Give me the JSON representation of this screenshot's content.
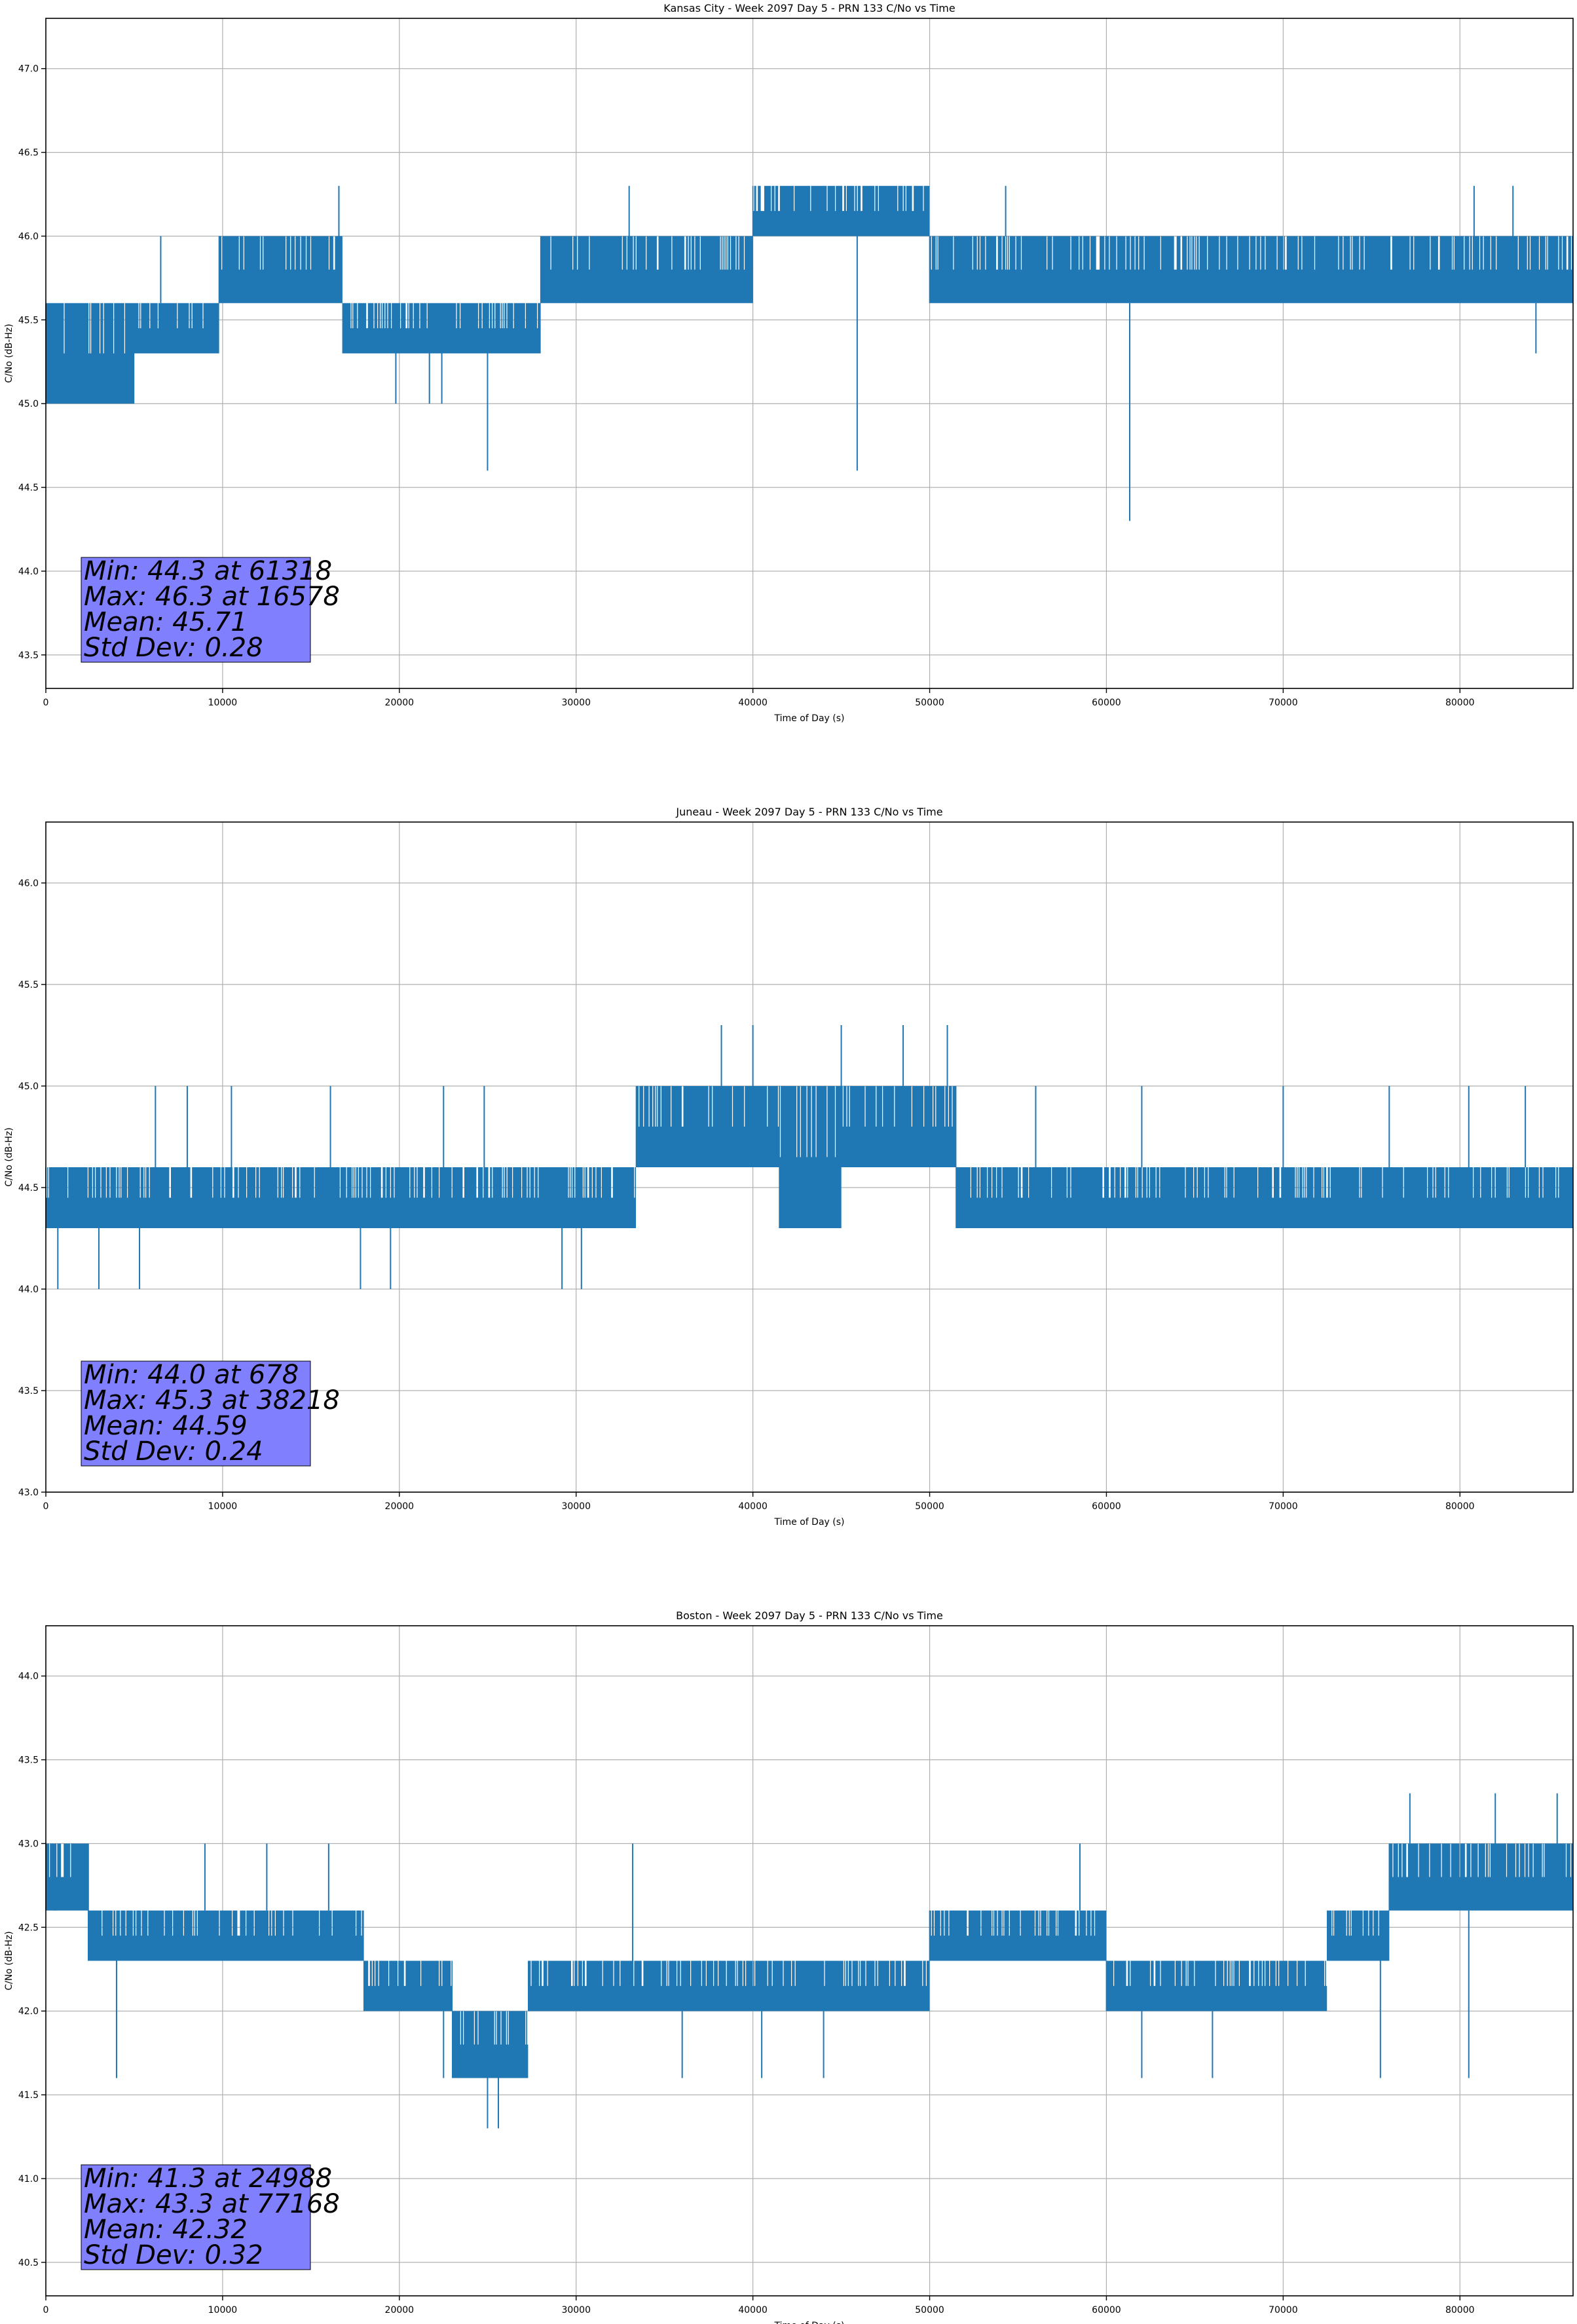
{
  "chart_data": [
    {
      "type": "line",
      "title": "Kansas City - Week 2097 Day 5 - PRN 133 C/No vs Time",
      "xlabel": "Time of Day (s)",
      "ylabel": "C/No (dB-Hz)",
      "xlim": [
        0,
        86400
      ],
      "ylim": [
        43.3,
        47.3
      ],
      "xticks": [
        0,
        10000,
        20000,
        30000,
        40000,
        50000,
        60000,
        70000,
        80000
      ],
      "yticks": [
        43.5,
        44.0,
        44.5,
        45.0,
        45.5,
        46.0,
        46.5,
        47.0
      ],
      "grid": true,
      "series_color": "#1f77b4",
      "stats_box": {
        "lines": [
          "Min: 44.3 at 61318",
          "Max: 46.3 at 16578",
          "Mean: 45.71",
          "Std Dev: 0.28"
        ],
        "box_color": "#8080ff"
      },
      "min": {
        "value": 44.3,
        "x": 61318
      },
      "max": {
        "value": 46.3,
        "x": 16578
      },
      "segments": [
        {
          "x": [
            0,
            5000
          ],
          "low": 45.0,
          "high": 45.6
        },
        {
          "x": [
            5000,
            9800
          ],
          "low": 45.3,
          "high": 45.6
        },
        {
          "x": [
            9800,
            16800
          ],
          "low": 45.6,
          "high": 46.0
        },
        {
          "x": [
            16800,
            26200
          ],
          "low": 45.3,
          "high": 45.6
        },
        {
          "x": [
            26200,
            28000
          ],
          "low": 45.3,
          "high": 45.6
        },
        {
          "x": [
            28000,
            40000
          ],
          "low": 45.6,
          "high": 46.0
        },
        {
          "x": [
            40000,
            50000
          ],
          "low": 46.0,
          "high": 46.3
        },
        {
          "x": [
            50000,
            86400
          ],
          "low": 45.6,
          "high": 46.0
        }
      ],
      "spikes": [
        {
          "x": 6500,
          "y": 46.0
        },
        {
          "x": 16578,
          "y": 46.3
        },
        {
          "x": 19800,
          "y": 45.0
        },
        {
          "x": 21700,
          "y": 45.0
        },
        {
          "x": 24988,
          "y": 44.6
        },
        {
          "x": 33000,
          "y": 46.3
        },
        {
          "x": 45900,
          "y": 44.6
        },
        {
          "x": 54300,
          "y": 46.3
        },
        {
          "x": 61318,
          "y": 44.3
        },
        {
          "x": 80800,
          "y": 46.3
        },
        {
          "x": 83000,
          "y": 46.3
        },
        {
          "x": 84300,
          "y": 45.3
        },
        {
          "x": 22400,
          "y": 45.0
        },
        {
          "x": 2500,
          "y": 45.0
        }
      ]
    },
    {
      "type": "line",
      "title": "Juneau - Week 2097 Day 5 - PRN 133 C/No vs Time",
      "xlabel": "Time of Day (s)",
      "ylabel": "C/No (dB-Hz)",
      "xlim": [
        0,
        86400
      ],
      "ylim": [
        43.0,
        46.3
      ],
      "xticks": [
        0,
        10000,
        20000,
        30000,
        40000,
        50000,
        60000,
        70000,
        80000
      ],
      "yticks": [
        43.0,
        43.5,
        44.0,
        44.5,
        45.0,
        45.5,
        46.0
      ],
      "grid": true,
      "series_color": "#1f77b4",
      "stats_box": {
        "lines": [
          "Min: 44.0 at 678",
          "Max: 45.3 at 38218",
          "Mean: 44.59",
          "Std Dev: 0.24"
        ],
        "box_color": "#8080ff"
      },
      "min": {
        "value": 44.0,
        "x": 678
      },
      "max": {
        "value": 45.3,
        "x": 38218
      },
      "segments": [
        {
          "x": [
            0,
            33400
          ],
          "low": 44.3,
          "high": 44.6
        },
        {
          "x": [
            33400,
            41500
          ],
          "low": 44.6,
          "high": 45.0
        },
        {
          "x": [
            41500,
            45000
          ],
          "low": 44.3,
          "high": 45.0
        },
        {
          "x": [
            45000,
            51500
          ],
          "low": 44.6,
          "high": 45.0
        },
        {
          "x": [
            51500,
            86400
          ],
          "low": 44.3,
          "high": 44.6
        }
      ],
      "spikes": [
        {
          "x": 678,
          "y": 44.0
        },
        {
          "x": 3000,
          "y": 44.0
        },
        {
          "x": 5300,
          "y": 44.0
        },
        {
          "x": 6200,
          "y": 45.0
        },
        {
          "x": 8000,
          "y": 45.0
        },
        {
          "x": 10500,
          "y": 45.0
        },
        {
          "x": 16100,
          "y": 45.0
        },
        {
          "x": 17800,
          "y": 44.0
        },
        {
          "x": 19500,
          "y": 44.0
        },
        {
          "x": 22500,
          "y": 45.0
        },
        {
          "x": 24800,
          "y": 45.0
        },
        {
          "x": 29200,
          "y": 44.0
        },
        {
          "x": 30300,
          "y": 44.0
        },
        {
          "x": 38218,
          "y": 45.3
        },
        {
          "x": 40000,
          "y": 45.3
        },
        {
          "x": 45000,
          "y": 45.3
        },
        {
          "x": 48500,
          "y": 45.3
        },
        {
          "x": 51000,
          "y": 45.3
        },
        {
          "x": 56000,
          "y": 45.0
        },
        {
          "x": 62000,
          "y": 45.0
        },
        {
          "x": 70000,
          "y": 45.0
        },
        {
          "x": 76000,
          "y": 45.0
        },
        {
          "x": 80500,
          "y": 45.0
        },
        {
          "x": 83700,
          "y": 45.0
        }
      ]
    },
    {
      "type": "line",
      "title": "Boston - Week 2097 Day 5 - PRN 133 C/No vs Time",
      "xlabel": "Time of Day (s)",
      "ylabel": "C/No (dB-Hz)",
      "xlim": [
        0,
        86400
      ],
      "ylim": [
        40.3,
        44.3
      ],
      "xticks": [
        0,
        10000,
        20000,
        30000,
        40000,
        50000,
        60000,
        70000,
        80000
      ],
      "yticks": [
        40.5,
        41.0,
        41.5,
        42.0,
        42.5,
        43.0,
        43.5,
        44.0
      ],
      "grid": true,
      "series_color": "#1f77b4",
      "stats_box": {
        "lines": [
          "Min: 41.3 at 24988",
          "Max: 43.3 at 77168",
          "Mean: 42.32",
          "Std Dev: 0.32"
        ],
        "box_color": "#8080ff"
      },
      "min": {
        "value": 41.3,
        "x": 24988
      },
      "max": {
        "value": 43.3,
        "x": 77168
      },
      "segments": [
        {
          "x": [
            0,
            2400
          ],
          "low": 42.6,
          "high": 43.0
        },
        {
          "x": [
            2400,
            18000
          ],
          "low": 42.3,
          "high": 42.6
        },
        {
          "x": [
            18000,
            23000
          ],
          "low": 42.0,
          "high": 42.3
        },
        {
          "x": [
            23000,
            27300
          ],
          "low": 41.6,
          "high": 42.0
        },
        {
          "x": [
            27300,
            50000
          ],
          "low": 42.0,
          "high": 42.3
        },
        {
          "x": [
            50000,
            60000
          ],
          "low": 42.3,
          "high": 42.6
        },
        {
          "x": [
            60000,
            72500
          ],
          "low": 42.0,
          "high": 42.3
        },
        {
          "x": [
            72500,
            76000
          ],
          "low": 42.3,
          "high": 42.6
        },
        {
          "x": [
            76000,
            86400
          ],
          "low": 42.6,
          "high": 43.0
        }
      ],
      "spikes": [
        {
          "x": 500,
          "y": 43.0
        },
        {
          "x": 2400,
          "y": 43.0
        },
        {
          "x": 4000,
          "y": 41.6
        },
        {
          "x": 9000,
          "y": 43.0
        },
        {
          "x": 12500,
          "y": 43.0
        },
        {
          "x": 16000,
          "y": 43.0
        },
        {
          "x": 22500,
          "y": 41.6
        },
        {
          "x": 24988,
          "y": 41.3
        },
        {
          "x": 25600,
          "y": 41.3
        },
        {
          "x": 33200,
          "y": 43.0
        },
        {
          "x": 36000,
          "y": 41.6
        },
        {
          "x": 40500,
          "y": 41.6
        },
        {
          "x": 44000,
          "y": 41.6
        },
        {
          "x": 58500,
          "y": 43.0
        },
        {
          "x": 62000,
          "y": 41.6
        },
        {
          "x": 66000,
          "y": 41.6
        },
        {
          "x": 75500,
          "y": 41.6
        },
        {
          "x": 77168,
          "y": 43.3
        },
        {
          "x": 80500,
          "y": 41.6
        },
        {
          "x": 82000,
          "y": 43.3
        },
        {
          "x": 85500,
          "y": 43.3
        }
      ]
    }
  ]
}
